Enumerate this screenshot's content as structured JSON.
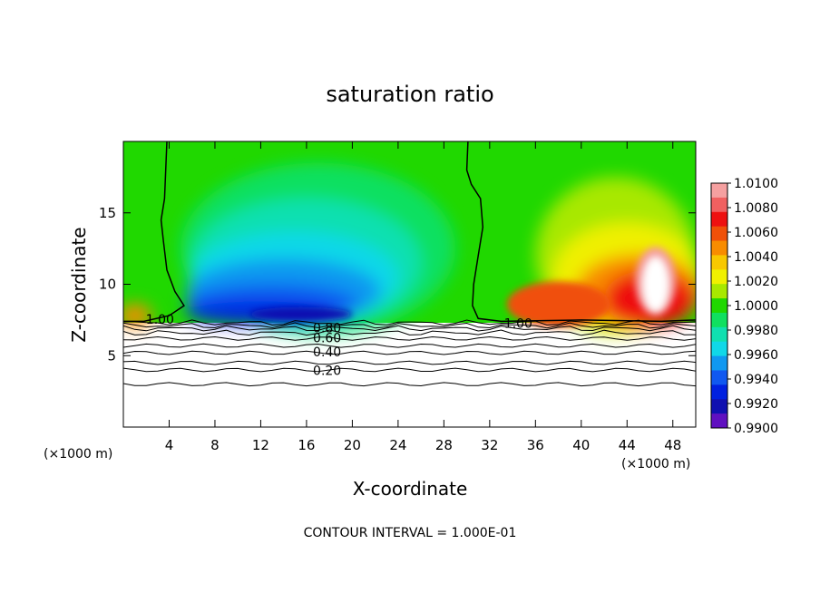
{
  "chart_data": {
    "type": "heatmap",
    "title": "saturation ratio",
    "xlabel": "X-coordinate",
    "ylabel": "Z-coordinate",
    "x_unit_left": "(×1000 m)",
    "x_unit_right": "(×1000 m)",
    "footer": "CONTOUR INTERVAL = 1.000E-01",
    "xlim": [
      0,
      50
    ],
    "ylim": [
      0,
      20
    ],
    "x_ticks": [
      4,
      8,
      12,
      16,
      20,
      24,
      28,
      32,
      36,
      40,
      44,
      48
    ],
    "x_tick_labels": [
      "4",
      "8",
      "12",
      "16",
      "20",
      "24",
      "28",
      "32",
      "36",
      "40",
      "44",
      "48"
    ],
    "y_ticks": [
      5,
      10,
      15
    ],
    "y_tick_labels": [
      "5",
      "10",
      "15"
    ],
    "colorbar": {
      "min": 0.99,
      "max": 1.01,
      "labels": [
        "1.0100",
        "1.0080",
        "1.0060",
        "1.0040",
        "1.0020",
        "1.0000",
        "0.9980",
        "0.9960",
        "0.9940",
        "0.9920",
        "0.9900"
      ],
      "colors": [
        "#f5a0a0",
        "#f06060",
        "#ee1010",
        "#f05008",
        "#f88c00",
        "#f8c800",
        "#f0f000",
        "#a8e800",
        "#20d800",
        "#10e060",
        "#10e0b0",
        "#10d8e8",
        "#1098f0",
        "#1058f0",
        "#0020e0",
        "#1010b0",
        "#6010c0"
      ]
    },
    "contour_labels": [
      {
        "text": "1.00",
        "x": 3.2,
        "z": 7.5
      },
      {
        "text": "1.00",
        "x": 34.5,
        "z": 7.2
      },
      {
        "text": "0.80",
        "x": 17.8,
        "z": 6.9
      },
      {
        "text": "0.60",
        "x": 17.8,
        "z": 6.2
      },
      {
        "text": "0.40",
        "x": 17.8,
        "z": 5.2
      },
      {
        "text": "0.20",
        "x": 17.8,
        "z": 3.9
      }
    ],
    "contour_levels": [
      1.0,
      0.9,
      0.8,
      0.7,
      0.6,
      0.5,
      0.4,
      0.3,
      0.2,
      0.1
    ],
    "contour_heights": [
      7.3,
      7.1,
      6.9,
      6.6,
      6.2,
      5.7,
      5.2,
      4.5,
      4.0,
      3.0
    ],
    "cloud_base_z": 7.3,
    "field_description": {
      "left_region_x": [
        0,
        4
      ],
      "dry_region_x": [
        6,
        30
      ],
      "moist_region_x": [
        30,
        50
      ],
      "supersat_max_x": 46.5,
      "supersat_max_z": 11
    }
  }
}
